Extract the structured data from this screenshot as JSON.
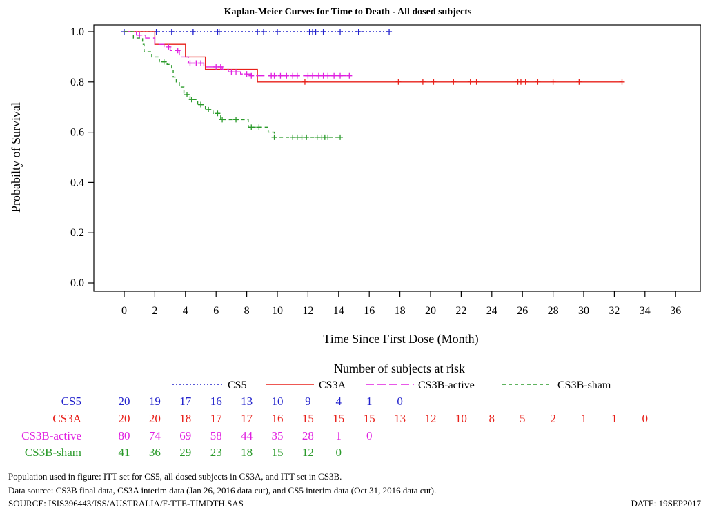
{
  "chart_data": {
    "type": "line",
    "title": "Kaplan-Meier Curves for Time to Death - All dosed subjects",
    "xlabel": "Time Since First Dose (Month)",
    "ylabel": "Probabilty of Survival",
    "xlim": [
      -2,
      37
    ],
    "ylim": [
      0,
      1
    ],
    "xticks": [
      0,
      2,
      4,
      6,
      8,
      10,
      12,
      14,
      16,
      18,
      20,
      22,
      24,
      26,
      28,
      30,
      32,
      34,
      36
    ],
    "yticks": [
      0.0,
      0.2,
      0.4,
      0.6,
      0.8,
      1.0
    ],
    "legend_position": "bottom",
    "series": [
      {
        "name": "CS5",
        "color": "#2222cc",
        "dash": "dotted",
        "steps": [
          [
            0,
            1.0
          ],
          [
            17.3,
            1.0
          ]
        ],
        "censored": [
          0,
          2.1,
          3.1,
          4.5,
          6.1,
          6.2,
          8.7,
          9.1,
          10,
          12.1,
          12.3,
          12.5,
          13,
          14.1,
          15.3,
          17.3
        ]
      },
      {
        "name": "CS3A",
        "color": "#e8201a",
        "dash": "solid",
        "steps": [
          [
            0,
            1.0
          ],
          [
            2,
            0.95
          ],
          [
            4,
            0.9
          ],
          [
            5.3,
            0.85
          ],
          [
            8.7,
            0.8
          ],
          [
            32.5,
            0.8
          ]
        ],
        "censored": [
          11.8,
          17.9,
          19.5,
          20.2,
          21.5,
          22.6,
          23,
          25.7,
          25.9,
          26.2,
          27,
          28,
          29.7,
          32.5
        ]
      },
      {
        "name": "CS3B-active",
        "color": "#e020e0",
        "dash": "longdash",
        "steps": [
          [
            0,
            1.0
          ],
          [
            0.8,
            0.987
          ],
          [
            1.4,
            0.975
          ],
          [
            2,
            0.95
          ],
          [
            2.6,
            0.94
          ],
          [
            3,
            0.925
          ],
          [
            3.6,
            0.9
          ],
          [
            4.2,
            0.875
          ],
          [
            5.2,
            0.86
          ],
          [
            6.4,
            0.85
          ],
          [
            6.8,
            0.84
          ],
          [
            7.6,
            0.832
          ],
          [
            8.3,
            0.825
          ],
          [
            14.7,
            0.825
          ]
        ],
        "censored": [
          1,
          2.9,
          3.5,
          4.3,
          4.7,
          5,
          6,
          6.3,
          7,
          7.3,
          8,
          8.3,
          9.6,
          9.8,
          10.2,
          10.6,
          11,
          11.3,
          12,
          12.3,
          12.7,
          13,
          13.3,
          13.7,
          14.1,
          14.7
        ]
      },
      {
        "name": "CS3B-sham",
        "color": "#2a9a2a",
        "dash": "dashed",
        "steps": [
          [
            0,
            1.0
          ],
          [
            0.6,
            0.975
          ],
          [
            1.2,
            0.95
          ],
          [
            1.3,
            0.92
          ],
          [
            1.8,
            0.9
          ],
          [
            2.3,
            0.88
          ],
          [
            2.8,
            0.87
          ],
          [
            3.1,
            0.85
          ],
          [
            3.2,
            0.82
          ],
          [
            3.4,
            0.8
          ],
          [
            3.6,
            0.78
          ],
          [
            3.9,
            0.75
          ],
          [
            4.3,
            0.73
          ],
          [
            4.8,
            0.71
          ],
          [
            5.3,
            0.69
          ],
          [
            5.8,
            0.675
          ],
          [
            6.3,
            0.65
          ],
          [
            8.1,
            0.62
          ],
          [
            9.4,
            0.6
          ],
          [
            9.8,
            0.58
          ],
          [
            14.1,
            0.58
          ]
        ],
        "censored": [
          2.6,
          4.1,
          4.4,
          5,
          5.5,
          6.1,
          6.4,
          7.3,
          8.3,
          8.8,
          9.8,
          11,
          11.3,
          11.6,
          11.9,
          12.6,
          12.9,
          13.1,
          13.3,
          14.1
        ]
      }
    ],
    "at_risk": {
      "heading": "Number of subjects at risk",
      "rows": [
        {
          "name": "CS5",
          "color": "#2222cc",
          "values": [
            "20",
            "19",
            "17",
            "16",
            "13",
            "10",
            "9",
            "4",
            "1",
            "0"
          ]
        },
        {
          "name": "CS3A",
          "color": "#e8201a",
          "values": [
            "20",
            "20",
            "18",
            "17",
            "17",
            "16",
            "15",
            "15",
            "15",
            "13",
            "12",
            "10",
            "8",
            "5",
            "2",
            "1",
            "1",
            "0"
          ]
        },
        {
          "name": "CS3B-active",
          "color": "#e020e0",
          "values": [
            "80",
            "74",
            "69",
            "58",
            "44",
            "35",
            "28",
            "1",
            "0"
          ]
        },
        {
          "name": "CS3B-sham",
          "color": "#2a9a2a",
          "values": [
            "41",
            "36",
            "29",
            "23",
            "18",
            "15",
            "12",
            "0"
          ]
        }
      ]
    }
  },
  "footnotes": {
    "line1": "Population used in figure: ITT set for CS5, all dosed subjects in CS3A, and ITT set in CS3B.",
    "line2": "Data source: CS3B final data, CS3A interim data (Jan 26, 2016 data cut), and CS5 interim data (Oct 31, 2016 data cut).",
    "source": "SOURCE: ISIS396443/ISS/AUSTRALIA/F-TTE-TIMDTH.SAS",
    "date": "DATE: 19SEP2017"
  }
}
